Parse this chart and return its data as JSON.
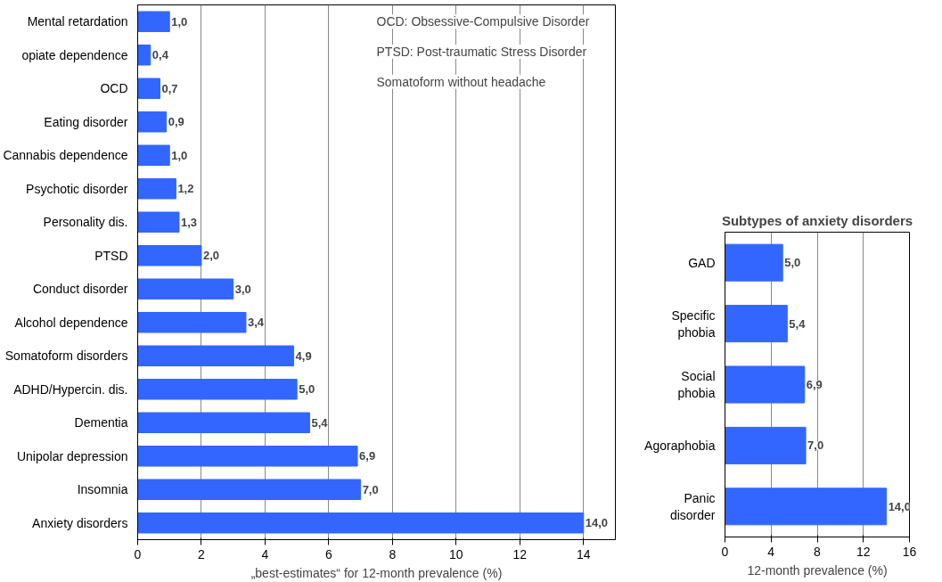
{
  "chart_data": [
    {
      "type": "bar",
      "orientation": "horizontal",
      "xlabel": "„best-estimates“ for 12-month prevalence (%)",
      "categories": [
        "Mental retardation",
        "opiate dependence",
        "OCD",
        "Eating disorder",
        "Cannabis dependence",
        "Psychotic disorder",
        "Personality dis.",
        "PTSD",
        "Conduct disorder",
        "Alcohol dependence",
        "Somatoform disorders",
        "ADHD/Hypercin. dis.",
        "Dementia",
        "Unipolar depression",
        "Insomnia",
        "Anxiety disorders"
      ],
      "values": [
        1.0,
        0.4,
        0.7,
        0.9,
        1.0,
        1.2,
        1.3,
        2.0,
        3.0,
        3.4,
        4.9,
        5.0,
        5.4,
        6.9,
        7.0,
        14.0
      ],
      "value_labels": [
        "1,0",
        "0,4",
        "0,7",
        "0,9",
        "1,0",
        "1,2",
        "1,3",
        "2,0",
        "3,0",
        "3,4",
        "4,9",
        "5,0",
        "5,4",
        "6,9",
        "7,0",
        "14,0"
      ],
      "color": "#3366ff",
      "xlim": [
        0,
        15
      ],
      "xticks": [
        0,
        2,
        4,
        6,
        8,
        10,
        12,
        14
      ],
      "grid": "x",
      "annotations": [
        "OCD: Obsessive-Compulsive Disorder",
        "PTSD: Post-traumatic Stress Disorder",
        "Somatoform without headache"
      ]
    },
    {
      "type": "bar",
      "orientation": "horizontal",
      "title": "Subtypes of anxiety disorders",
      "xlabel": "12-month prevalence (%)",
      "categories": [
        "GAD",
        "Specific phobia",
        "Social phobia",
        "Agoraphobia",
        "Panic disorder"
      ],
      "values": [
        5.0,
        5.4,
        6.9,
        7.0,
        14.0
      ],
      "value_labels": [
        "5,0",
        "5,4",
        "6,9",
        "7,0",
        "14,0"
      ],
      "color": "#3366ff",
      "xlim": [
        0,
        16
      ],
      "xticks": [
        0,
        4,
        8,
        12,
        16
      ],
      "grid": "x"
    }
  ]
}
